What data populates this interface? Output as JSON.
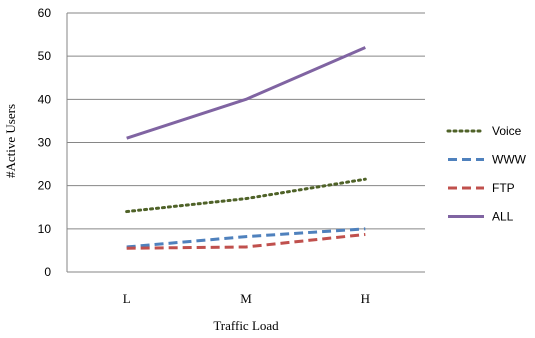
{
  "chart_data": {
    "type": "line",
    "categories": [
      "L",
      "M",
      "H"
    ],
    "xlabel": "Traffic Load",
    "ylabel": "#Active Users",
    "ylim": [
      0,
      60
    ],
    "yticks": [
      0,
      10,
      20,
      30,
      40,
      50,
      60
    ],
    "grid": "horizontal",
    "legend_position": "right",
    "series": [
      {
        "name": "Voice",
        "values": [
          14,
          17,
          21.5
        ],
        "color": "#4f6228",
        "style": "dotted"
      },
      {
        "name": "WWW",
        "values": [
          5.8,
          8.2,
          10
        ],
        "color": "#4f81bd",
        "style": "dashed"
      },
      {
        "name": "FTP",
        "values": [
          5.5,
          5.8,
          8.7
        ],
        "color": "#c0504d",
        "style": "dashed"
      },
      {
        "name": "ALL",
        "values": [
          31,
          40,
          52
        ],
        "color": "#8064a2",
        "style": "solid"
      }
    ]
  }
}
